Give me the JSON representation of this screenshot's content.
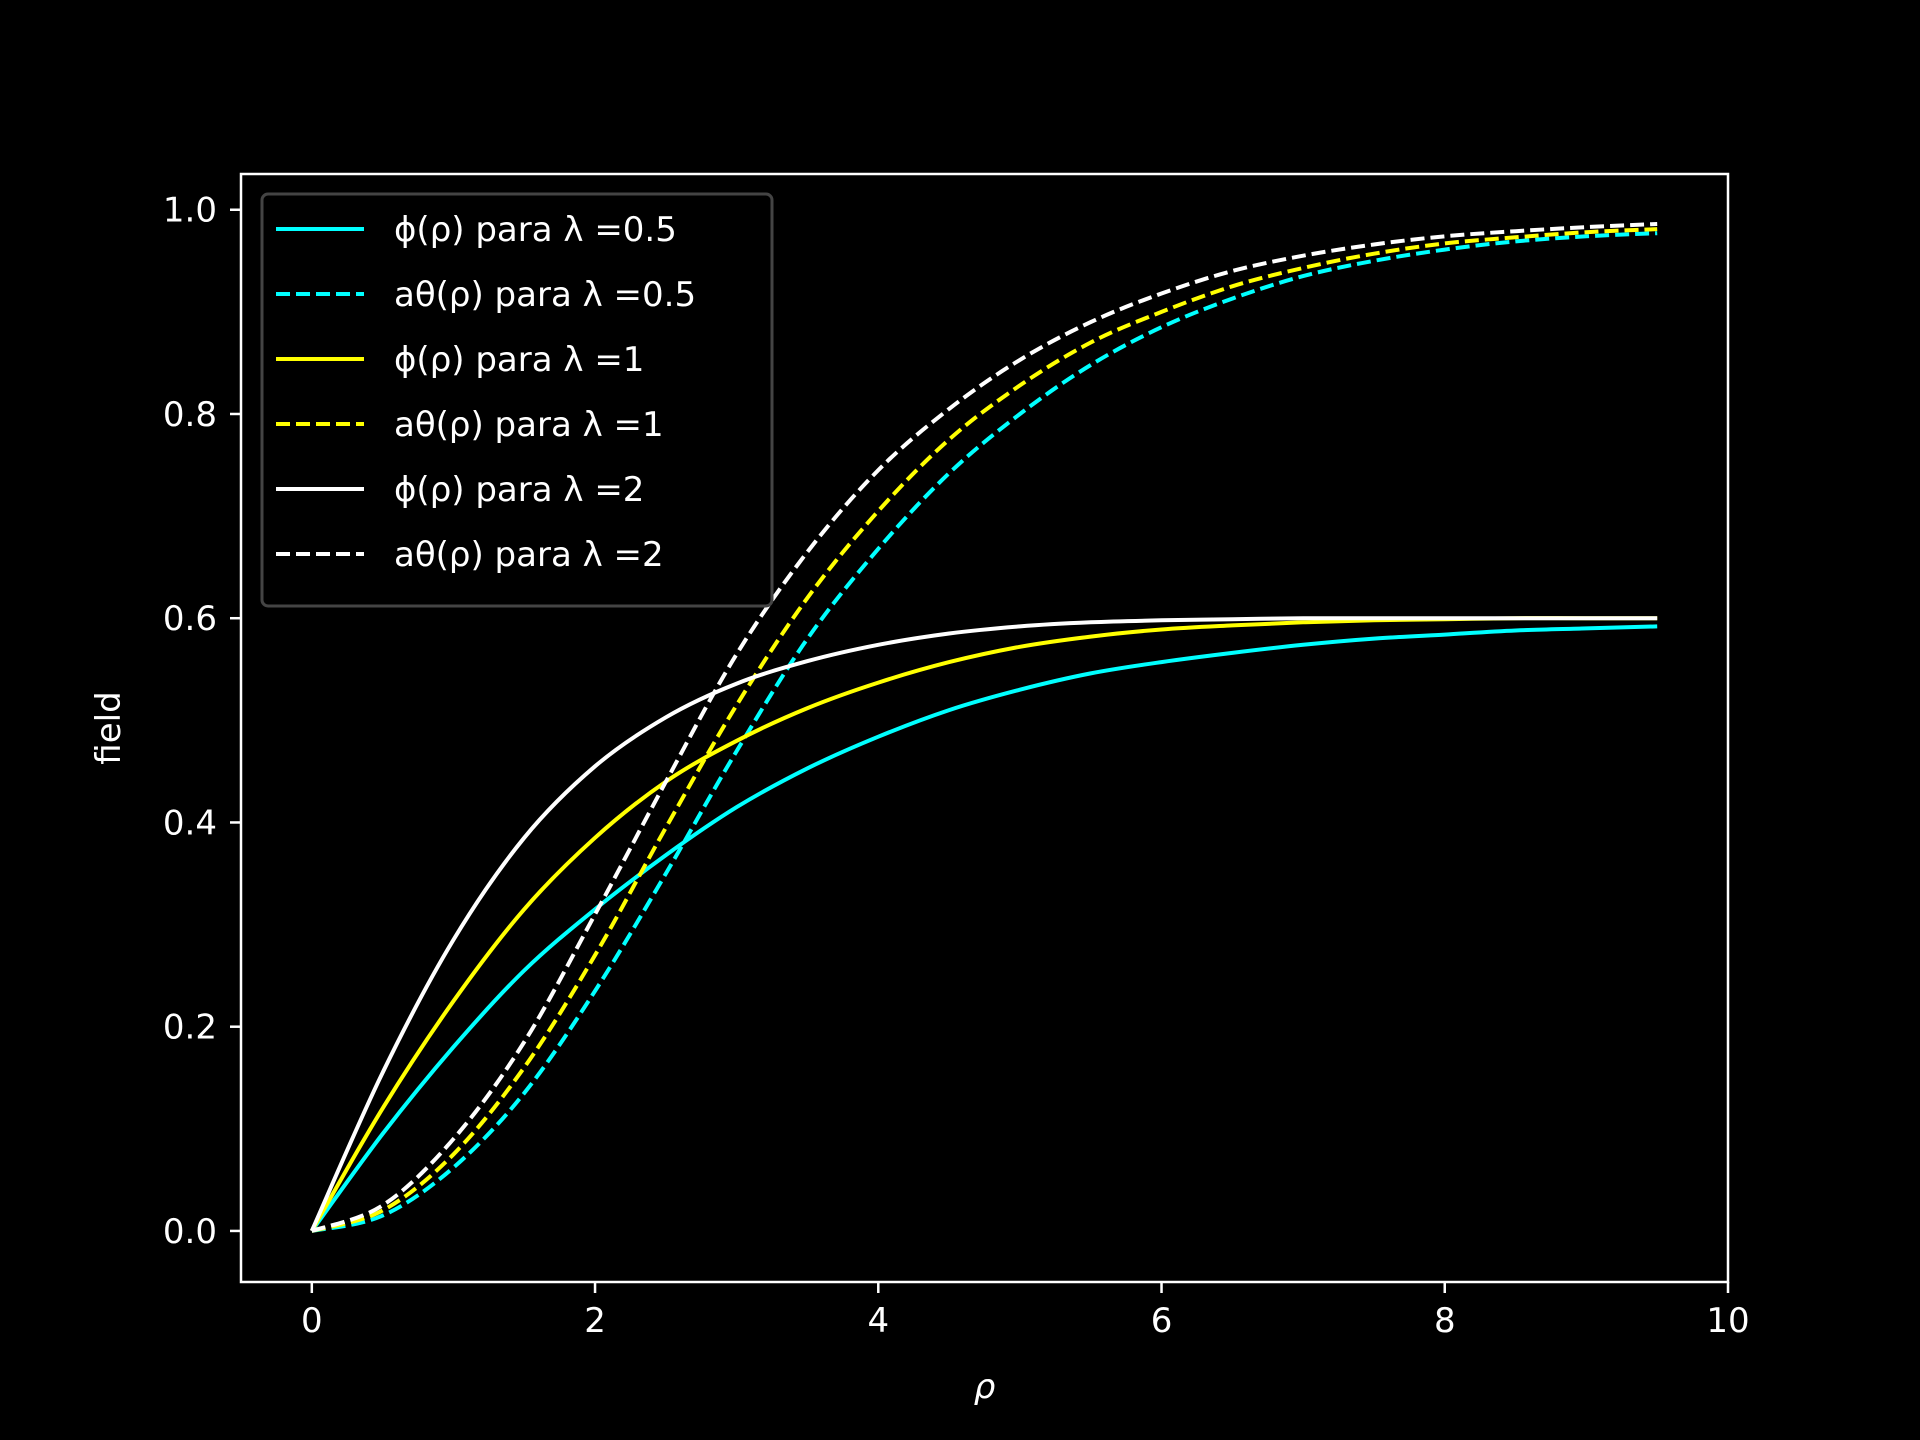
{
  "chart_data": {
    "type": "line",
    "title": "",
    "xlabel": "ρ",
    "ylabel": "field",
    "xlim": [
      -0.5,
      10
    ],
    "ylim": [
      -0.05,
      1.035
    ],
    "xticks": [
      "0",
      "2",
      "4",
      "6",
      "8",
      "10"
    ],
    "yticks": [
      "0.0",
      "0.2",
      "0.4",
      "0.6",
      "0.8",
      "1.0"
    ],
    "grid": false,
    "legend_position": "upper-left",
    "background": "#000000",
    "x": [
      0,
      0.5,
      1,
      1.5,
      2,
      2.5,
      3,
      3.5,
      4,
      4.5,
      5,
      5.5,
      6,
      6.5,
      7,
      7.5,
      8,
      8.5,
      9,
      9.5
    ],
    "series": [
      {
        "name": "ϕ(ρ) para λ =0.5",
        "color": "#00ffff",
        "dash": "solid",
        "values": [
          0.0,
          0.095,
          0.18,
          0.255,
          0.315,
          0.368,
          0.415,
          0.453,
          0.484,
          0.51,
          0.53,
          0.546,
          0.557,
          0.566,
          0.574,
          0.58,
          0.584,
          0.588,
          0.59,
          0.592
        ]
      },
      {
        "name": "aθ(ρ) para λ =0.5",
        "color": "#00ffff",
        "dash": "dashed",
        "values": [
          0.0,
          0.015,
          0.062,
          0.135,
          0.235,
          0.35,
          0.47,
          0.58,
          0.668,
          0.742,
          0.8,
          0.848,
          0.885,
          0.913,
          0.935,
          0.95,
          0.961,
          0.969,
          0.974,
          0.977
        ]
      },
      {
        "name": "ϕ(ρ) para λ =1",
        "color": "#ffff00",
        "dash": "solid",
        "values": [
          0.0,
          0.12,
          0.225,
          0.315,
          0.385,
          0.44,
          0.48,
          0.512,
          0.537,
          0.557,
          0.572,
          0.582,
          0.589,
          0.593,
          0.596,
          0.598,
          0.599,
          0.6,
          0.6,
          0.6
        ]
      },
      {
        "name": "aθ(ρ) para λ =1",
        "color": "#ffff00",
        "dash": "dashed",
        "values": [
          0.0,
          0.02,
          0.075,
          0.16,
          0.27,
          0.395,
          0.515,
          0.62,
          0.705,
          0.775,
          0.828,
          0.87,
          0.9,
          0.925,
          0.943,
          0.957,
          0.967,
          0.973,
          0.978,
          0.981
        ]
      },
      {
        "name": "ϕ(ρ) para λ =2",
        "color": "#ffffff",
        "dash": "solid",
        "values": [
          0.0,
          0.155,
          0.285,
          0.385,
          0.455,
          0.503,
          0.536,
          0.558,
          0.574,
          0.585,
          0.592,
          0.596,
          0.598,
          0.599,
          0.6,
          0.6,
          0.6,
          0.6,
          0.6,
          0.6
        ]
      },
      {
        "name": "aθ(ρ) para λ =2",
        "color": "#ffffff",
        "dash": "dashed",
        "values": [
          0.0,
          0.025,
          0.09,
          0.185,
          0.31,
          0.44,
          0.565,
          0.665,
          0.745,
          0.805,
          0.853,
          0.89,
          0.918,
          0.94,
          0.955,
          0.966,
          0.974,
          0.979,
          0.983,
          0.986
        ]
      }
    ]
  }
}
